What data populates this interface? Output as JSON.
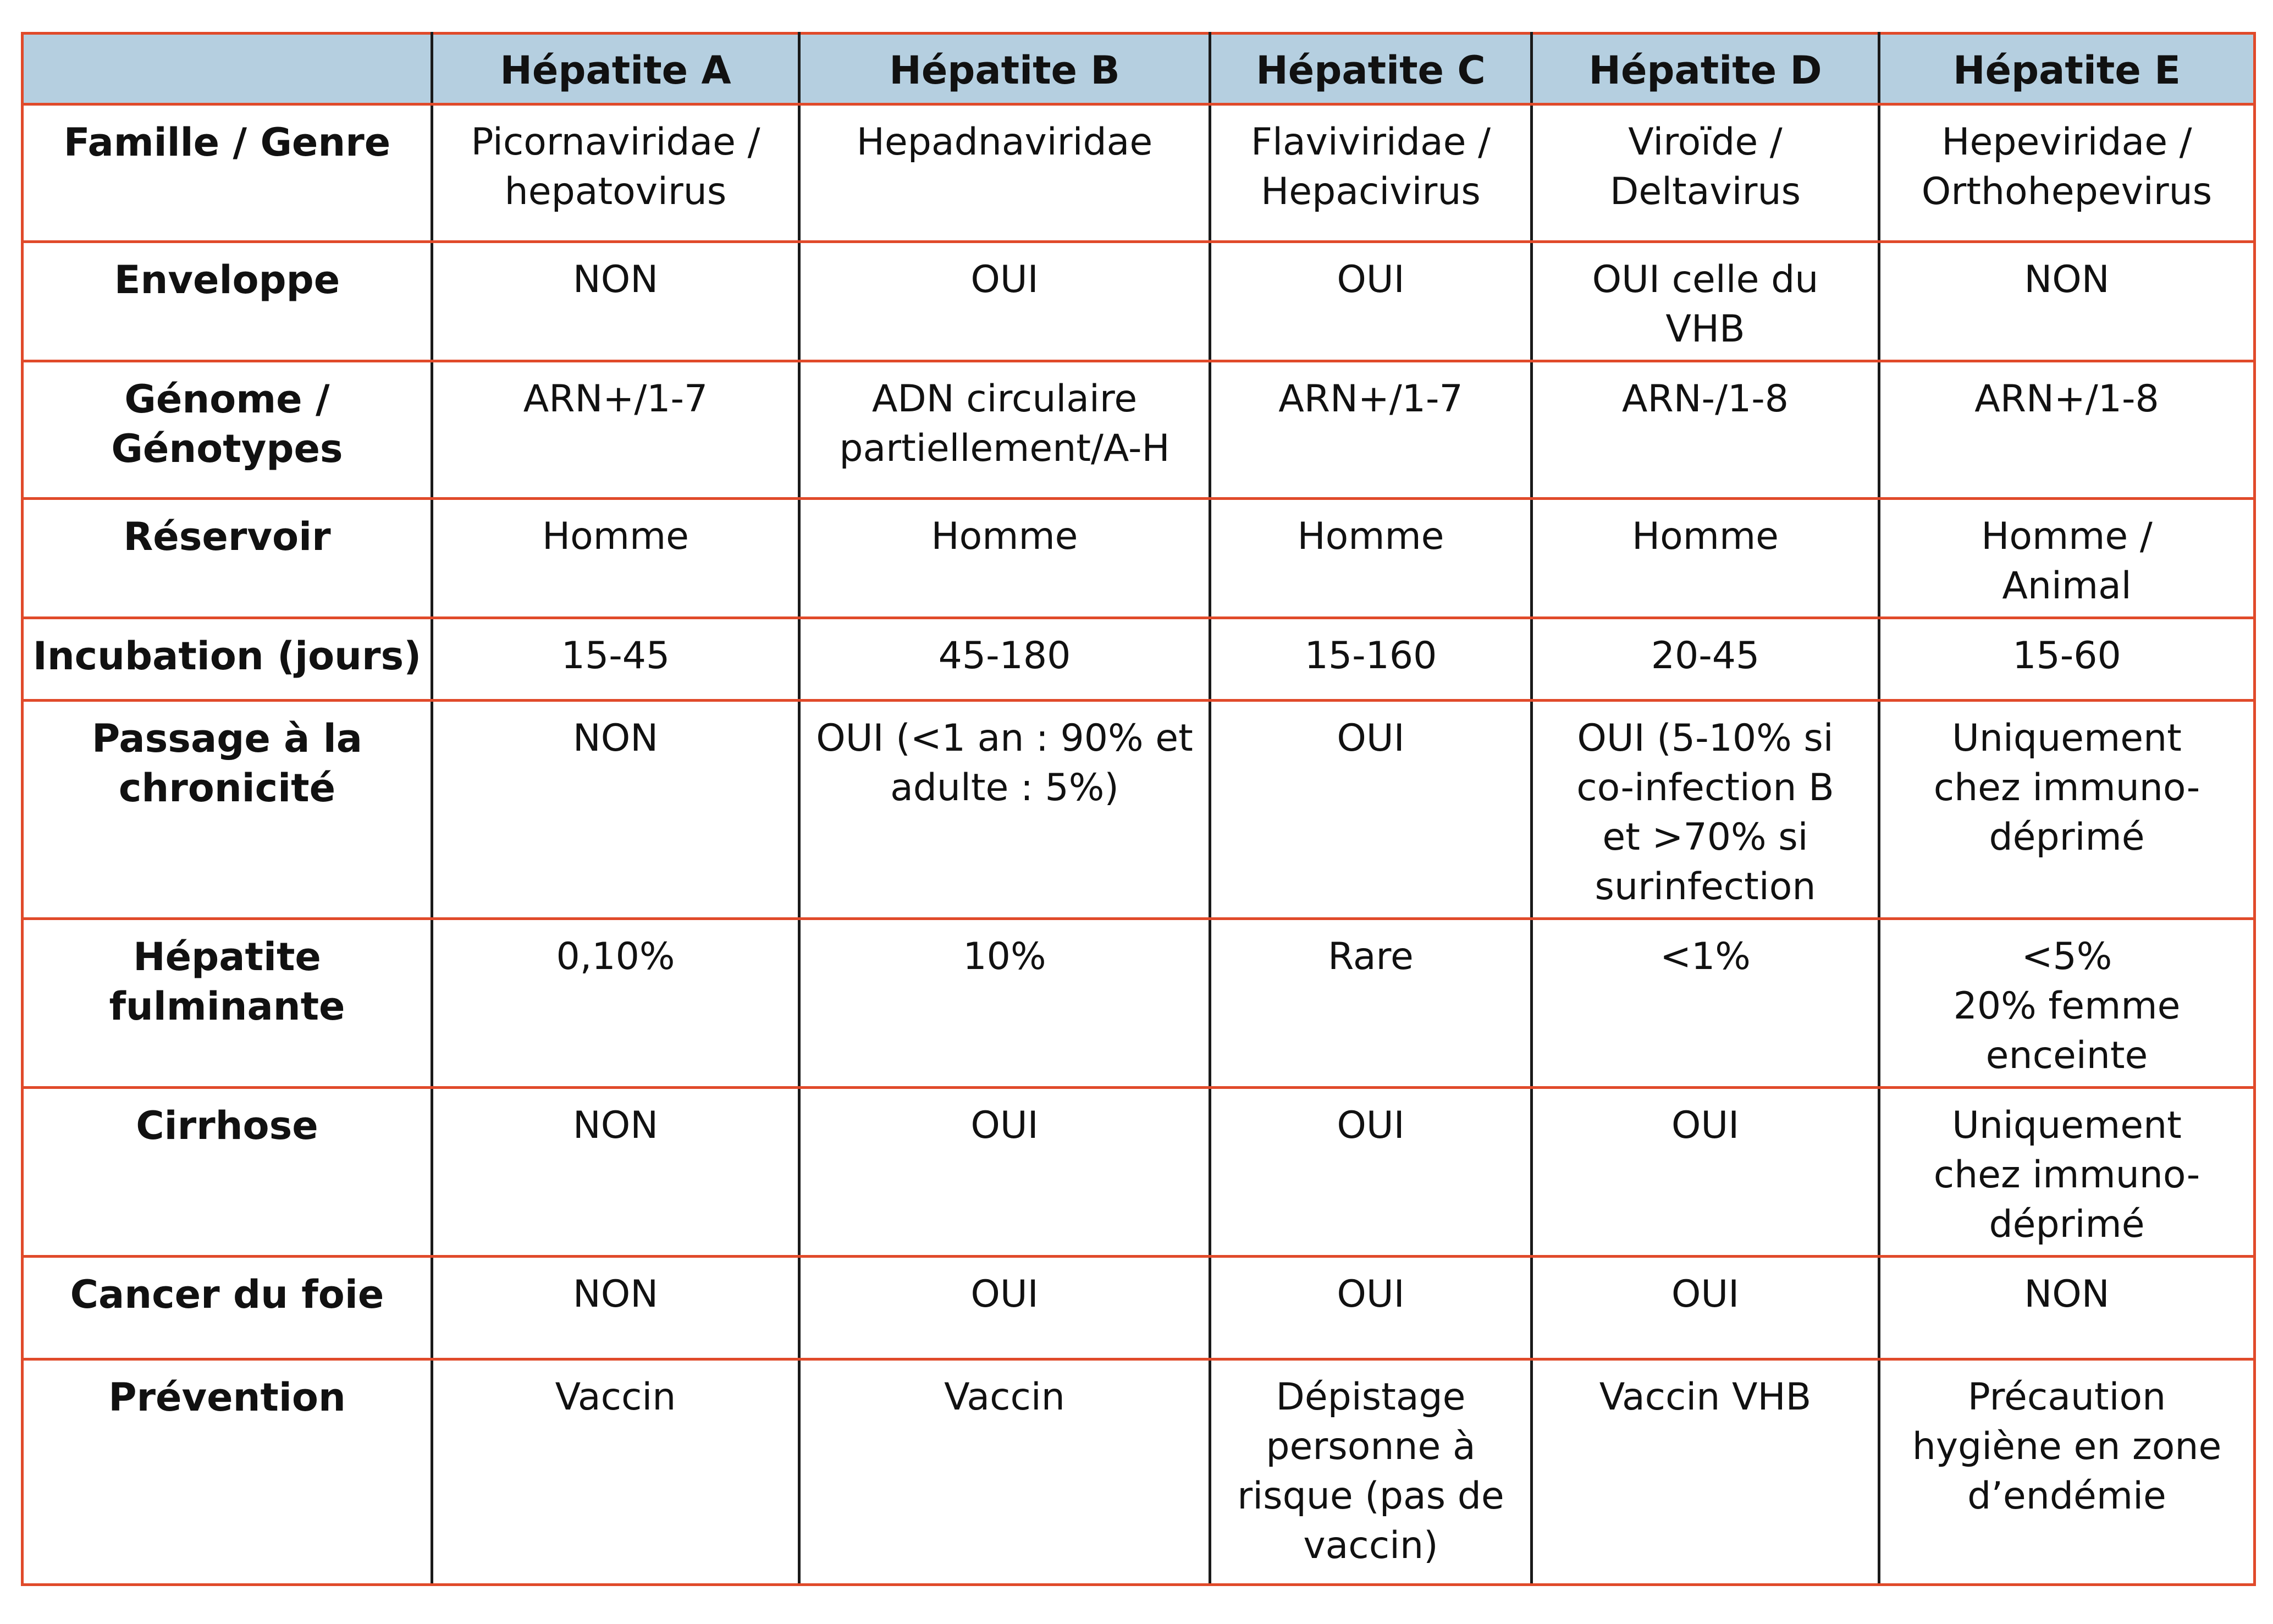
{
  "table": {
    "header": [
      "",
      "Hépatite A",
      "Hépatite B",
      "Hépatite C",
      "Hépatite D",
      "Hépatite E"
    ],
    "rows": [
      {
        "label": "Famille / Genre",
        "cells": [
          "Picornaviridae /\nhepatovirus",
          "Hepadnaviridae",
          "Flaviviridae /\nHepacivirus",
          "Viroïde /\nDeltavirus",
          "Hepeviridae /\nOrthohepevirus"
        ]
      },
      {
        "label": "Enveloppe",
        "cells": [
          "NON",
          "OUI",
          "OUI",
          "OUI celle du\nVHB",
          "NON"
        ]
      },
      {
        "label": "Génome /\nGénotypes",
        "cells": [
          "ARN+/1-7",
          "ADN circulaire\npartiellement/A-H",
          "ARN+/1-7",
          "ARN-/1-8",
          "ARN+/1-8"
        ]
      },
      {
        "label": "Réservoir",
        "cells": [
          "Homme",
          "Homme",
          "Homme",
          "Homme",
          "Homme /\nAnimal"
        ]
      },
      {
        "label": "Incubation (jours)",
        "cells": [
          "15-45",
          "45-180",
          "15-160",
          "20-45",
          "15-60"
        ]
      },
      {
        "label": "Passage à la\nchronicité",
        "cells": [
          "NON",
          "OUI (<1 an : 90% et\nadulte : 5%)",
          "OUI",
          "OUI (5-10% si\nco-infection B\net >70% si\nsurinfection",
          "Uniquement\nchez immuno-\ndéprimé"
        ]
      },
      {
        "label": "Hépatite\nfulminante",
        "cells": [
          "0,10%",
          "10%",
          "Rare",
          "<1%",
          "<5%\n20% femme\nenceinte"
        ]
      },
      {
        "label": "Cirrhose",
        "cells": [
          "NON",
          "OUI",
          "OUI",
          "OUI",
          "Uniquement\nchez immuno-\ndéprimé"
        ]
      },
      {
        "label": "Cancer du foie",
        "cells": [
          "NON",
          "OUI",
          "OUI",
          "OUI",
          "NON"
        ]
      },
      {
        "label": "Prévention",
        "cells": [
          "Vaccin",
          "Vaccin",
          "Dépistage\npersonne à\nrisque (pas de\nvaccin)",
          "Vaccin VHB",
          "Précaution\nhygiène en zone\nd’endémie"
        ]
      }
    ]
  },
  "colors": {
    "header_bg": "#b5cfe0",
    "row_border": "#e04a2a",
    "col_border": "#1a1a1a"
  }
}
